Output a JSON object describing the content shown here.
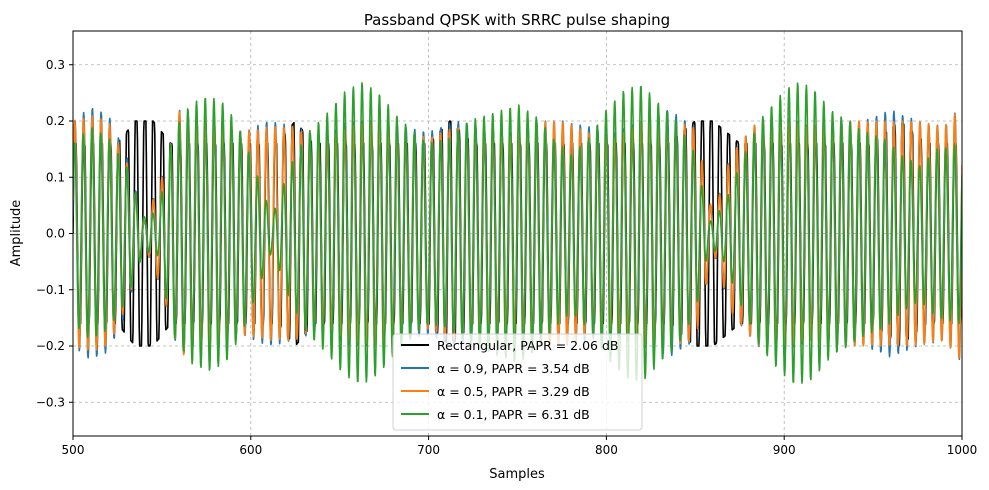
{
  "chart_data": {
    "type": "line",
    "title": "Passband QPSK with SRRC pulse shaping",
    "xlabel": "Samples",
    "ylabel": "Amplitude",
    "xlim": [
      500,
      1000
    ],
    "ylim": [
      -0.36,
      0.36
    ],
    "xticks": [
      500,
      600,
      700,
      800,
      900,
      1000
    ],
    "yticks": [
      -0.3,
      -0.2,
      -0.1,
      0.0,
      0.1,
      0.2,
      0.3
    ],
    "xtick_labels": [
      "500",
      "600",
      "700",
      "800",
      "900",
      "1000"
    ],
    "ytick_labels": [
      "−0.3",
      "−0.2",
      "−0.1",
      "0.0",
      "0.1",
      "0.2",
      "0.3"
    ],
    "grid": true,
    "legend_position": "bottom-center",
    "carrier_period_samples": 4.9,
    "series": [
      {
        "name": "Rectangular, PAPR = 2.06 dB",
        "color": "#000000",
        "envelope": {
          "x": [
            500,
            525,
            535,
            545,
            555,
            565,
            575,
            585,
            600,
            615,
            625,
            635,
            645,
            655,
            665,
            675,
            685,
            700,
            712,
            725,
            735,
            745,
            760,
            775,
            790,
            805,
            820,
            835,
            850,
            860,
            875,
            890,
            905,
            920,
            935,
            950,
            965,
            980,
            1000
          ],
          "values": [
            0.16,
            0.16,
            0.2,
            0.2,
            0.16,
            0.16,
            0.16,
            0.16,
            0.16,
            0.16,
            0.2,
            0.16,
            0.16,
            0.16,
            0.16,
            0.16,
            0.16,
            0.16,
            0.2,
            0.16,
            0.16,
            0.16,
            0.16,
            0.16,
            0.16,
            0.16,
            0.16,
            0.16,
            0.2,
            0.2,
            0.16,
            0.16,
            0.16,
            0.16,
            0.16,
            0.16,
            0.2,
            0.16,
            0.16
          ]
        }
      },
      {
        "name": "α = 0.9, PAPR = 3.54 dB",
        "color": "#1f77b4",
        "envelope": {
          "x": [
            500,
            510,
            520,
            530,
            540,
            550,
            560,
            570,
            580,
            595,
            610,
            625,
            640,
            655,
            670,
            685,
            700,
            715,
            730,
            745,
            760,
            775,
            790,
            805,
            820,
            835,
            850,
            860,
            870,
            885,
            900,
            915,
            930,
            945,
            960,
            975,
            990,
            1000
          ],
          "values": [
            0.2,
            0.225,
            0.21,
            0.14,
            0.02,
            0.1,
            0.22,
            0.2,
            0.2,
            0.18,
            0.2,
            0.19,
            0.17,
            0.2,
            0.2,
            0.19,
            0.18,
            0.2,
            0.19,
            0.18,
            0.2,
            0.2,
            0.19,
            0.18,
            0.2,
            0.22,
            0.19,
            0.03,
            0.14,
            0.2,
            0.21,
            0.19,
            0.2,
            0.2,
            0.22,
            0.2,
            0.19,
            0.23
          ]
        }
      },
      {
        "name": "α = 0.5, PAPR = 3.29 dB",
        "color": "#ff7f0e",
        "envelope": {
          "x": [
            500,
            510,
            520,
            530,
            540,
            550,
            560,
            570,
            580,
            595,
            610,
            625,
            640,
            655,
            670,
            685,
            700,
            715,
            730,
            745,
            760,
            775,
            790,
            805,
            820,
            835,
            850,
            860,
            870,
            885,
            900,
            915,
            930,
            945,
            960,
            975,
            990,
            1000
          ],
          "values": [
            0.2,
            0.21,
            0.2,
            0.13,
            0.02,
            0.1,
            0.22,
            0.2,
            0.2,
            0.18,
            0.19,
            0.19,
            0.16,
            0.19,
            0.2,
            0.18,
            0.17,
            0.19,
            0.18,
            0.17,
            0.2,
            0.2,
            0.18,
            0.17,
            0.2,
            0.2,
            0.19,
            0.03,
            0.14,
            0.2,
            0.2,
            0.19,
            0.2,
            0.2,
            0.2,
            0.2,
            0.19,
            0.23
          ]
        }
      },
      {
        "name": "α = 0.1, PAPR = 6.31 dB",
        "color": "#2ca02c",
        "envelope": {
          "x": [
            500,
            510,
            520,
            530,
            540,
            548,
            556,
            566,
            576,
            586,
            596,
            604,
            612,
            622,
            632,
            642,
            652,
            662,
            672,
            682,
            692,
            700,
            712,
            722,
            732,
            742,
            750,
            760,
            770,
            780,
            790,
            800,
            810,
            820,
            830,
            840,
            850,
            858,
            866,
            876,
            886,
            896,
            906,
            916,
            926,
            936,
            946,
            956,
            966,
            976,
            986,
            1000
          ],
          "values": [
            0.16,
            0.19,
            0.17,
            0.12,
            0.03,
            0.04,
            0.18,
            0.23,
            0.245,
            0.23,
            0.17,
            0.1,
            0.03,
            0.12,
            0.18,
            0.21,
            0.25,
            0.27,
            0.25,
            0.21,
            0.18,
            0.16,
            0.17,
            0.2,
            0.21,
            0.22,
            0.23,
            0.21,
            0.17,
            0.14,
            0.17,
            0.22,
            0.255,
            0.265,
            0.23,
            0.2,
            0.14,
            0.02,
            0.05,
            0.13,
            0.2,
            0.24,
            0.27,
            0.26,
            0.22,
            0.2,
            0.18,
            0.17,
            0.14,
            0.12,
            0.15,
            0.16
          ]
        }
      }
    ]
  }
}
